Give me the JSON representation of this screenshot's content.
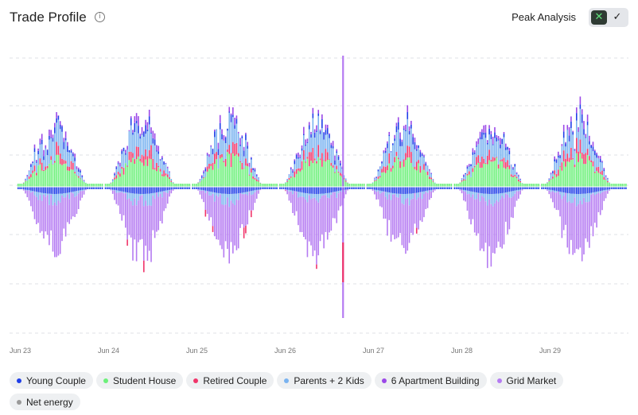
{
  "header": {
    "title": "Trade Profile",
    "info_icon": "info-circle-icon",
    "peak_label": "Peak Analysis",
    "toggle_off_icon": "x-icon",
    "toggle_on_icon": "check-icon"
  },
  "chart_data": {
    "type": "bar",
    "stacked": true,
    "title": "",
    "xlabel": "",
    "ylabel": "",
    "x_ticks": [
      "Jun 23",
      "Jun 24",
      "Jun 25",
      "Jun 26",
      "Jun 27",
      "Jun 28",
      "Jun 29"
    ],
    "y_tick_labels_visible": false,
    "grid": "horizontal dashed",
    "legend_position": "bottom",
    "daily_peaks_above_zero": [
      0.45,
      0.5,
      0.5,
      0.48,
      0.46,
      0.42,
      0.5
    ],
    "daily_troughs_below_zero": [
      -0.48,
      -0.55,
      -0.5,
      -0.55,
      -0.5,
      -0.55,
      -0.53
    ],
    "highest_spike": 1.0,
    "lowest_spike": -1.0,
    "series": [
      {
        "name": "Young Couple",
        "color": "#1f3ee8"
      },
      {
        "name": "Student House",
        "color": "#6cf07a"
      },
      {
        "name": "Retired Couple",
        "color": "#f0356a"
      },
      {
        "name": "Parents + 2 Kids",
        "color": "#7ab3f0"
      },
      {
        "name": "6 Apartment Building",
        "color": "#9b48e8"
      },
      {
        "name": "Grid Market",
        "color": "#b57bf2"
      },
      {
        "name": "Net energy",
        "color": "#9a9a9a"
      }
    ]
  }
}
